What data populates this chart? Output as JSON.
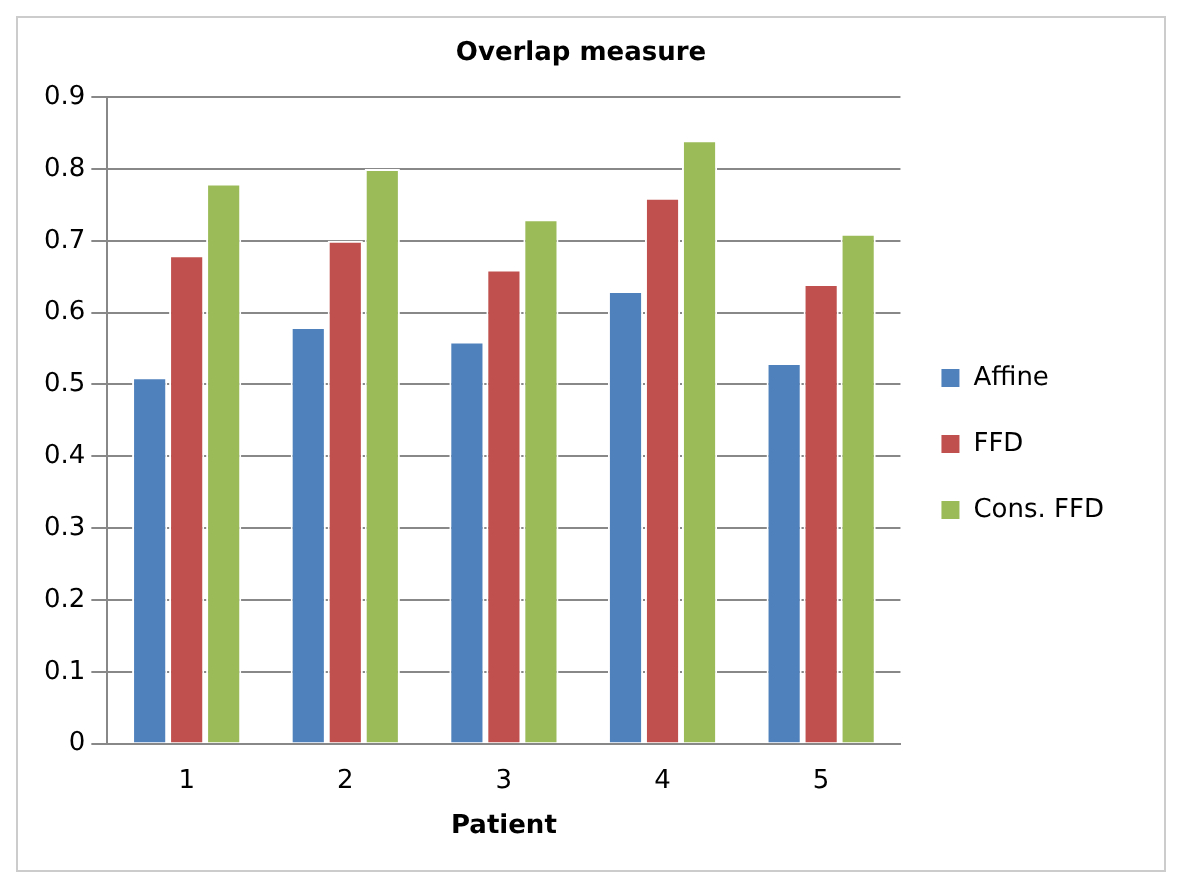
{
  "chart_data": {
    "type": "bar",
    "title": "Overlap measure",
    "xlabel": "Patient",
    "categories": [
      "1",
      "2",
      "3",
      "4",
      "5"
    ],
    "series": [
      {
        "name": "Affine",
        "color": "#4f81bd",
        "values": [
          0.51,
          0.58,
          0.56,
          0.63,
          0.53
        ]
      },
      {
        "name": "FFD",
        "color": "#c0504d",
        "values": [
          0.68,
          0.7,
          0.66,
          0.76,
          0.64
        ]
      },
      {
        "name": "Cons. FFD",
        "color": "#9bbb59",
        "values": [
          0.78,
          0.8,
          0.73,
          0.84,
          0.71
        ]
      }
    ],
    "ylim": [
      0,
      0.9
    ],
    "yticks": [
      0,
      0.1,
      0.2,
      0.3,
      0.4,
      0.5,
      0.6,
      0.7,
      0.8,
      0.9
    ],
    "grid": "y",
    "legend": "right"
  }
}
